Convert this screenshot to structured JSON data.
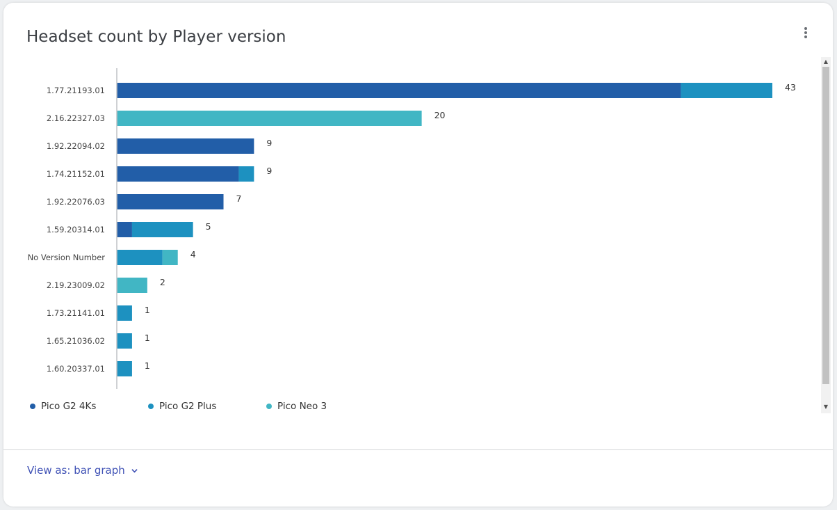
{
  "title": "Headset count by Player version",
  "menu_icon": "more-vert-icon",
  "view_as": {
    "label": "View as: bar graph",
    "icon": "chevron-down-icon"
  },
  "colors": {
    "Pico G2 4Ks": "#225ea8",
    "Pico G2 Plus": "#1d91c0",
    "Pico Neo 3": "#41b6c4"
  },
  "chart_data": {
    "type": "bar",
    "orientation": "horizontal",
    "stacked": true,
    "categories": [
      "1.77.21193.01",
      "2.16.22327.03",
      "1.92.22094.02",
      "1.74.21152.01",
      "1.92.22076.03",
      "1.59.20314.01",
      "No Version Number",
      "2.19.23009.02",
      "1.73.21141.01",
      "1.65.21036.02",
      "1.60.20337.01"
    ],
    "series": [
      {
        "name": "Pico G2 4Ks",
        "values": [
          37,
          0,
          9,
          8,
          7,
          1,
          0,
          0,
          0,
          0,
          0
        ]
      },
      {
        "name": "Pico G2 Plus",
        "values": [
          6,
          0,
          0,
          1,
          0,
          4,
          3,
          0,
          1,
          1,
          1
        ]
      },
      {
        "name": "Pico Neo 3",
        "values": [
          0,
          20,
          0,
          0,
          0,
          0,
          1,
          2,
          0,
          0,
          0
        ]
      }
    ],
    "totals": [
      43,
      20,
      9,
      9,
      7,
      5,
      4,
      2,
      1,
      1,
      1
    ],
    "xlim": [
      0,
      43
    ],
    "legend": "bottom-left",
    "grid": false
  }
}
